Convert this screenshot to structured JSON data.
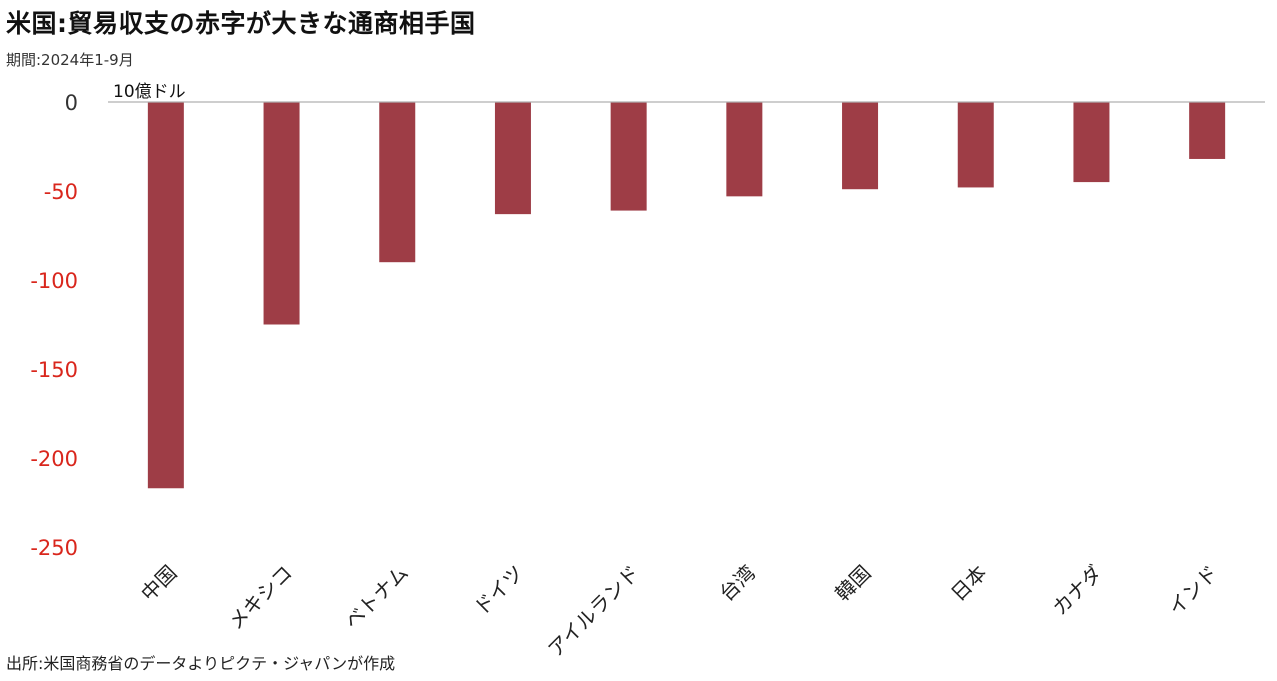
{
  "header": {
    "title": "米国:貿易収支の赤字が大きな通商相手国",
    "period": "期間:2024年1-9月"
  },
  "footer": {
    "source": "出所:米国商務省のデータよりピクテ・ジャパンが作成"
  },
  "colors": {
    "bar": "#9e3d46",
    "negative_tick": "#d9261c",
    "zero_tick": "#333333",
    "axis": "#b0b0b0"
  },
  "chart_data": {
    "type": "bar",
    "title": "米国:貿易収支の赤字が大きな通商相手国",
    "subtitle": "期間:2024年1-9月",
    "ylabel": "10億ドル",
    "xlabel": "",
    "categories": [
      "中国",
      "メキシコ",
      "ベトナム",
      "ドイツ",
      "アイルランド",
      "台湾",
      "韓国",
      "日本",
      "カナダ",
      "インド"
    ],
    "values": [
      -217,
      -125,
      -90,
      -63,
      -61,
      -53,
      -49,
      -48,
      -45,
      -32
    ],
    "ylim": [
      -250,
      0
    ],
    "yticks": [
      0,
      -50,
      -100,
      -150,
      -200,
      -250
    ],
    "ytick_labels": [
      "0",
      "-50",
      "-100",
      "-150",
      "-200",
      "-250"
    ],
    "grid": false,
    "legend": "none"
  }
}
